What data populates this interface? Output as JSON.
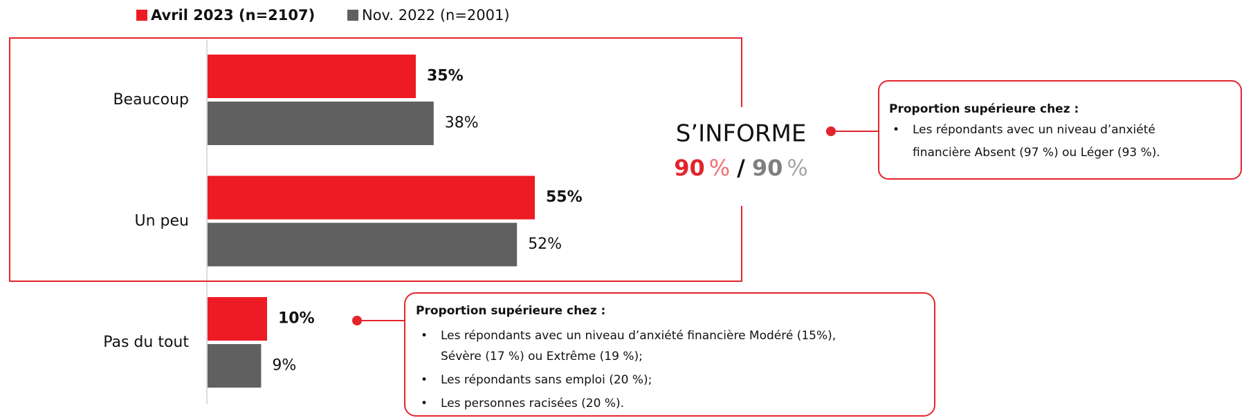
{
  "chart_data": {
    "type": "bar",
    "orientation": "horizontal",
    "categories": [
      "Beaucoup",
      "Un peu",
      "Pas du tout"
    ],
    "series": [
      {
        "name": "Avril 2023 (n=2107)",
        "color": "#ed1c24",
        "values": [
          35,
          55,
          10
        ],
        "value_labels": [
          "35%",
          "55%",
          "10%"
        ]
      },
      {
        "name": "Nov. 2022 (n=2001)",
        "color": "#606060",
        "values": [
          38,
          52,
          9
        ],
        "value_labels": [
          "38%",
          "52%",
          "9%"
        ]
      }
    ],
    "summary": {
      "title": "S’INFORME",
      "current": "90",
      "previous": "90",
      "unit": "%",
      "separator": "/"
    },
    "callouts": [
      {
        "title": "Proportion supérieure chez :",
        "items": [
          [
            "Les répondants avec un niveau d’anxiété",
            "financière Absent (97 %) ou Léger (93 %)."
          ]
        ]
      },
      {
        "title": "Proportion supérieure chez :",
        "items": [
          [
            "Les répondants avec un niveau d’anxiété financière Modéré (15%),",
            "Sévère (17 %) ou Extrême (19 %);"
          ],
          [
            "Les répondants sans emploi (20 %);"
          ],
          [
            "Les personnes racisées (20 %)."
          ]
        ]
      }
    ]
  }
}
